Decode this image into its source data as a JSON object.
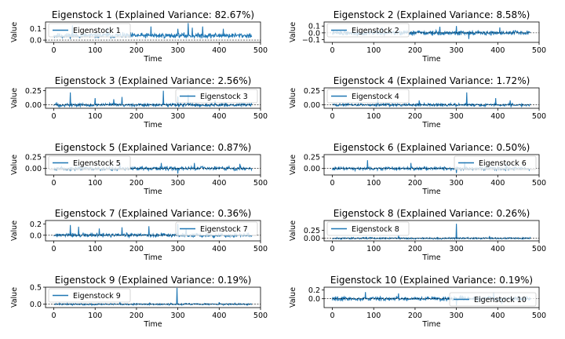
{
  "chart_data": [
    {
      "type": "line",
      "title": "Eigenstock 1 (Explained Variance: 82.67%)",
      "xlabel": "Time",
      "ylabel": "Value",
      "xlim": [
        -20,
        500
      ],
      "ylim": [
        -0.02,
        0.16
      ],
      "xticks": [
        0,
        100,
        200,
        300,
        400,
        500
      ],
      "yticks": [
        0.0,
        0.1
      ],
      "ytick_labels": [
        "0.0",
        "0.1"
      ],
      "hline": 0,
      "legend": "upper left",
      "series": [
        {
          "name": "Eigenstock 1",
          "profile": {
            "n": 480,
            "base": 0.04,
            "noise": 0.02,
            "seed": 11,
            "spikes": [
              [
                45,
                0.13
              ],
              [
                130,
                0.11
              ],
              [
                235,
                0.12
              ],
              [
                300,
                0.1
              ],
              [
                325,
                0.15
              ],
              [
                335,
                0.11
              ],
              [
                360,
                0.12
              ],
              [
                410,
                0.1
              ]
            ]
          }
        }
      ]
    },
    {
      "type": "line",
      "title": "Eigenstock 2 (Explained Variance: 8.58%)",
      "xlabel": "Time",
      "ylabel": "Value",
      "xlim": [
        -20,
        500
      ],
      "ylim": [
        -0.14,
        0.16
      ],
      "xticks": [
        0,
        100,
        200,
        300,
        400,
        500
      ],
      "yticks": [
        -0.1,
        0.0,
        0.1
      ],
      "ytick_labels": [
        "−0.1",
        "0.0",
        "0.1"
      ],
      "hline": 0,
      "legend": "upper left",
      "series": [
        {
          "name": "Eigenstock 2",
          "profile": {
            "n": 480,
            "base": 0.0,
            "noise": 0.03,
            "seed": 22,
            "spikes": [
              [
                120,
                0.08
              ],
              [
                260,
                0.09
              ],
              [
                300,
                0.1
              ],
              [
                330,
                -0.09
              ],
              [
                405,
                0.08
              ]
            ]
          }
        }
      ]
    },
    {
      "type": "line",
      "title": "Eigenstock 3 (Explained Variance: 2.56%)",
      "xlabel": "Time",
      "ylabel": "Value",
      "xlim": [
        -20,
        500
      ],
      "ylim": [
        -0.06,
        0.3
      ],
      "xticks": [
        0,
        100,
        200,
        300,
        400,
        500
      ],
      "yticks": [
        0.0,
        0.25
      ],
      "ytick_labels": [
        "0.00",
        "0.25"
      ],
      "hline": 0,
      "legend": "upper right",
      "series": [
        {
          "name": "Eigenstock 3",
          "profile": {
            "n": 480,
            "base": 0.0,
            "noise": 0.025,
            "seed": 33,
            "spikes": [
              [
                40,
                0.22
              ],
              [
                100,
                0.12
              ],
              [
                145,
                0.1
              ],
              [
                165,
                0.14
              ],
              [
                265,
                0.25
              ],
              [
                300,
                0.15
              ],
              [
                325,
                0.18
              ],
              [
                390,
                0.08
              ]
            ]
          }
        }
      ]
    },
    {
      "type": "line",
      "title": "Eigenstock 4 (Explained Variance: 1.72%)",
      "xlabel": "Time",
      "ylabel": "Value",
      "xlim": [
        -20,
        500
      ],
      "ylim": [
        -0.06,
        0.3
      ],
      "xticks": [
        0,
        100,
        200,
        300,
        400,
        500
      ],
      "yticks": [
        0.0,
        0.25
      ],
      "ytick_labels": [
        "0.00",
        "0.25"
      ],
      "hline": 0,
      "legend": "upper left",
      "series": [
        {
          "name": "Eigenstock 4",
          "profile": {
            "n": 480,
            "base": 0.0,
            "noise": 0.02,
            "seed": 44,
            "spikes": [
              [
                110,
                0.1
              ],
              [
                210,
                0.08
              ],
              [
                325,
                0.22
              ],
              [
                395,
                0.12
              ],
              [
                430,
                0.08
              ]
            ]
          }
        }
      ]
    },
    {
      "type": "line",
      "title": "Eigenstock 5 (Explained Variance: 0.87%)",
      "xlabel": "Time",
      "ylabel": "Value",
      "xlim": [
        -20,
        500
      ],
      "ylim": [
        -0.14,
        0.3
      ],
      "xticks": [
        0,
        100,
        200,
        300,
        400,
        500
      ],
      "yticks": [
        0.0,
        0.25
      ],
      "ytick_labels": [
        "0.00",
        "0.25"
      ],
      "hline": 0,
      "legend": "upper left",
      "series": [
        {
          "name": "Eigenstock 5",
          "profile": {
            "n": 480,
            "base": 0.0,
            "noise": 0.035,
            "seed": 55,
            "spikes": [
              [
                160,
                0.1
              ],
              [
                260,
                0.12
              ],
              [
                300,
                -0.11
              ],
              [
                340,
                0.12
              ],
              [
                450,
                0.1
              ]
            ]
          }
        }
      ]
    },
    {
      "type": "line",
      "title": "Eigenstock 6 (Explained Variance: 0.50%)",
      "xlabel": "Time",
      "ylabel": "Value",
      "xlim": [
        -20,
        500
      ],
      "ylim": [
        -0.14,
        0.3
      ],
      "xticks": [
        0,
        100,
        200,
        300,
        400,
        500
      ],
      "yticks": [
        0.0,
        0.25
      ],
      "ytick_labels": [
        "0.00",
        "0.25"
      ],
      "hline": 0,
      "legend": "upper right",
      "series": [
        {
          "name": "Eigenstock 6",
          "profile": {
            "n": 480,
            "base": 0.0,
            "noise": 0.03,
            "seed": 66,
            "spikes": [
              [
                85,
                0.18
              ],
              [
                190,
                0.12
              ],
              [
                300,
                -0.1
              ],
              [
                320,
                0.14
              ],
              [
                420,
                0.1
              ]
            ]
          }
        }
      ]
    },
    {
      "type": "line",
      "title": "Eigenstock 7 (Explained Variance: 0.36%)",
      "xlabel": "Time",
      "ylabel": "Value",
      "xlim": [
        -20,
        500
      ],
      "ylim": [
        -0.1,
        0.26
      ],
      "xticks": [
        0,
        100,
        200,
        300,
        400,
        500
      ],
      "yticks": [
        0.0,
        0.2
      ],
      "ytick_labels": [
        "0.0",
        "0.2"
      ],
      "hline": 0,
      "legend": "upper right",
      "series": [
        {
          "name": "Eigenstock 7",
          "profile": {
            "n": 480,
            "base": 0.0,
            "noise": 0.03,
            "seed": 77,
            "spikes": [
              [
                40,
                0.18
              ],
              [
                60,
                0.15
              ],
              [
                110,
                0.12
              ],
              [
                165,
                0.14
              ],
              [
                230,
                0.16
              ],
              [
                300,
                0.2
              ],
              [
                320,
                0.12
              ]
            ]
          }
        }
      ]
    },
    {
      "type": "line",
      "title": "Eigenstock 8 (Explained Variance: 0.26%)",
      "xlabel": "Time",
      "ylabel": "Value",
      "xlim": [
        -20,
        500
      ],
      "ylim": [
        -0.08,
        0.55
      ],
      "xticks": [
        0,
        100,
        200,
        300,
        400,
        500
      ],
      "yticks": [
        0.0,
        0.25
      ],
      "ytick_labels": [
        "0.00",
        "0.25"
      ],
      "hline": 0,
      "legend": "upper left",
      "series": [
        {
          "name": "Eigenstock 8",
          "profile": {
            "n": 480,
            "base": 0.0,
            "noise": 0.02,
            "seed": 88,
            "spikes": [
              [
                300,
                0.45
              ],
              [
                160,
                0.08
              ],
              [
                380,
                0.07
              ]
            ]
          }
        }
      ]
    },
    {
      "type": "line",
      "title": "Eigenstock 9 (Explained Variance: 0.19%)",
      "xlabel": "Time",
      "ylabel": "Value",
      "xlim": [
        -20,
        500
      ],
      "ylim": [
        -0.1,
        0.5
      ],
      "xticks": [
        0,
        100,
        200,
        300,
        400,
        500
      ],
      "yticks": [
        0.0,
        0.5
      ],
      "ytick_labels": [
        "0.0",
        "0.5"
      ],
      "hline": 0,
      "legend": "upper left",
      "series": [
        {
          "name": "Eigenstock 9",
          "profile": {
            "n": 480,
            "base": 0.0,
            "noise": 0.02,
            "seed": 99,
            "spikes": [
              [
                298,
                0.48
              ],
              [
                160,
                0.08
              ],
              [
                400,
                0.06
              ]
            ]
          }
        }
      ]
    },
    {
      "type": "line",
      "title": "Eigenstock 10 (Explained Variance: 0.19%)",
      "xlabel": "Time",
      "ylabel": "Value",
      "xlim": [
        -20,
        500
      ],
      "ylim": [
        -0.2,
        0.26
      ],
      "xticks": [
        0,
        100,
        200,
        300,
        400,
        500
      ],
      "yticks": [
        0.0,
        0.2
      ],
      "ytick_labels": [
        "0.0",
        "0.2"
      ],
      "hline": 0,
      "legend": "lower right",
      "series": [
        {
          "name": "Eigenstock 10",
          "profile": {
            "n": 480,
            "base": 0.0,
            "noise": 0.04,
            "seed": 110,
            "spikes": [
              [
                80,
                0.15
              ],
              [
                160,
                0.12
              ],
              [
                300,
                -0.15
              ],
              [
                390,
                0.14
              ],
              [
                410,
                -0.12
              ]
            ]
          }
        }
      ]
    }
  ],
  "colors": {
    "line": "#1f77b4",
    "axes": "#000000",
    "hline": "#000000",
    "background": "#ffffff",
    "legend_border": "#cccccc"
  }
}
